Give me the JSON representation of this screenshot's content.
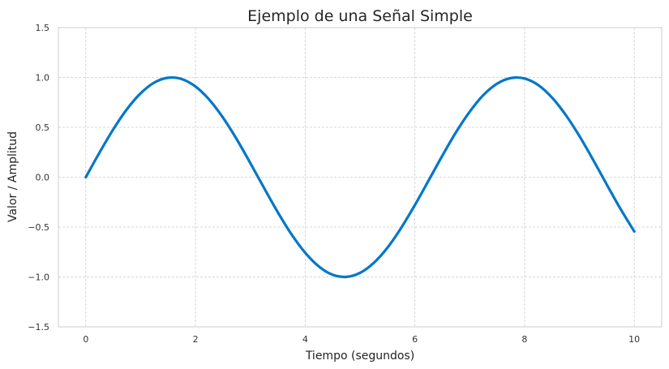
{
  "chart_data": {
    "type": "line",
    "title": "Ejemplo de una Señal Simple",
    "xlabel": "Tiempo (segundos)",
    "ylabel": "Valor / Amplitud",
    "xlim": [
      -0.5,
      10.5
    ],
    "ylim": [
      -1.5,
      1.5
    ],
    "x_ticks": [
      0,
      2,
      4,
      6,
      8,
      10
    ],
    "x_tick_labels": [
      "0",
      "2",
      "4",
      "6",
      "8",
      "10"
    ],
    "y_ticks": [
      -1.5,
      -1.0,
      -0.5,
      0.0,
      0.5,
      1.0,
      1.5
    ],
    "y_tick_labels": [
      "−1.5",
      "−1.0",
      "−0.5",
      "0.0",
      "0.5",
      "1.0",
      "1.5"
    ],
    "grid": true,
    "series": [
      {
        "color": "#0077c8",
        "x": [
          0,
          0.25,
          0.5,
          0.75,
          1.0,
          1.25,
          1.5,
          1.75,
          2.0,
          2.25,
          2.5,
          2.75,
          3.0,
          3.25,
          3.5,
          3.75,
          4.0,
          4.25,
          4.5,
          4.75,
          5.0,
          5.25,
          5.5,
          5.75,
          6.0,
          6.25,
          6.5,
          6.75,
          7.0,
          7.25,
          7.5,
          7.75,
          8.0,
          8.25,
          8.5,
          8.75,
          9.0,
          9.25,
          9.5,
          9.75,
          10.0
        ],
        "y": [
          0.0,
          0.247,
          0.479,
          0.682,
          0.841,
          0.949,
          0.997,
          0.984,
          0.909,
          0.778,
          0.598,
          0.382,
          0.141,
          -0.108,
          -0.351,
          -0.572,
          -0.757,
          -0.895,
          -0.978,
          -0.999,
          -0.959,
          -0.859,
          -0.706,
          -0.508,
          -0.279,
          -0.033,
          0.215,
          0.451,
          0.657,
          0.824,
          0.938,
          0.994,
          0.989,
          0.923,
          0.798,
          0.624,
          0.412,
          0.174,
          -0.075,
          -0.319,
          -0.544
        ]
      }
    ]
  }
}
